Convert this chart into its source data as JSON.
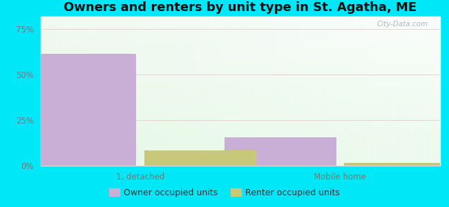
{
  "title": "Owners and renters by unit type in St. Agatha, ME",
  "categories": [
    "1, detached",
    "Mobile home"
  ],
  "owner_values": [
    61.5,
    15.5
  ],
  "renter_values": [
    8.5,
    1.5
  ],
  "owner_color": "#c9afd6",
  "renter_color": "#c8c87a",
  "yticks": [
    0,
    25,
    50,
    75
  ],
  "ytick_labels": [
    "0%",
    "25%",
    "50%",
    "75%"
  ],
  "ylim": [
    0,
    82
  ],
  "bar_width": 0.28,
  "outer_bg": "#00e8f8",
  "watermark": "City-Data.com",
  "legend_labels": [
    "Owner occupied units",
    "Renter occupied units"
  ],
  "title_fontsize": 13,
  "axis_fontsize": 8.5,
  "legend_fontsize": 9,
  "group_positions": [
    0.25,
    0.75
  ],
  "xlim": [
    0,
    1
  ]
}
